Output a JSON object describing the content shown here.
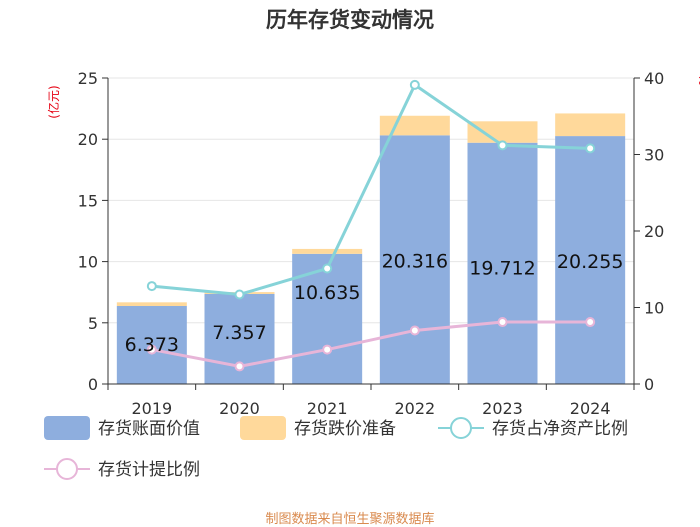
{
  "chart_data": {
    "type": "bar",
    "title": "历年存货变动情况",
    "categories": [
      "2019",
      "2020",
      "2021",
      "2022",
      "2023",
      "2024"
    ],
    "left_axis": {
      "unit_label": "(亿元)",
      "range": [
        0,
        25
      ],
      "ticks": [
        "0",
        "5",
        "10",
        "15",
        "20",
        "25"
      ]
    },
    "right_axis": {
      "unit_label": "%",
      "range": [
        0,
        40
      ],
      "ticks": [
        "0",
        "10",
        "20",
        "30",
        "40"
      ]
    },
    "series": [
      {
        "name": "存货账面价值",
        "kind": "stacked-bar",
        "axis": "left",
        "color": "#8eaede",
        "values": [
          6.373,
          7.357,
          10.635,
          20.316,
          19.712,
          20.255
        ],
        "labels": [
          "6.373",
          "7.357",
          "10.635",
          "20.316",
          "19.712",
          "20.255"
        ]
      },
      {
        "name": "存货跌价准备",
        "kind": "stacked-bar",
        "axis": "left",
        "color": "#ffd99b",
        "values": [
          0.3,
          0.15,
          0.4,
          1.6,
          1.75,
          1.85
        ]
      },
      {
        "name": "存货占净资产比例",
        "kind": "line",
        "axis": "right",
        "color": "#86d3d8",
        "values": [
          12.8,
          11.7,
          15.1,
          39.1,
          31.2,
          30.8
        ]
      },
      {
        "name": "存货计提比例",
        "kind": "line",
        "axis": "right",
        "color": "#e7b5d8",
        "values": [
          4.5,
          2.3,
          4.5,
          7.0,
          8.1,
          8.1
        ]
      }
    ],
    "grid": true,
    "legend_position": "bottom"
  },
  "source": "制图数据来自恒生聚源数据库"
}
